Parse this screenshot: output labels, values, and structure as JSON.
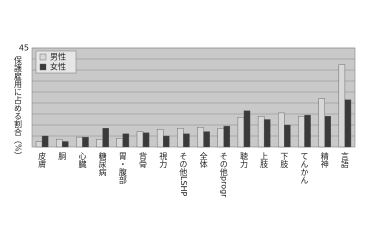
{
  "chart_data": {
    "type": "bar",
    "y_label": "保護雇用に占める割合（%）",
    "categories": [
      "皮膚",
      "胴",
      "心臓",
      "糖尿病",
      "胃・腹部",
      "背骨",
      "視力",
      "その他LSHP",
      "全体",
      "その他progr",
      "聴力",
      "上肢",
      "下肢",
      "てんかん",
      "精神",
      "言語"
    ],
    "series": [
      {
        "name": "男性",
        "color": "#d8d8d8",
        "values": [
          2.5,
          3.5,
          4.5,
          3.5,
          4,
          7,
          8,
          8.5,
          9,
          8.5,
          13.5,
          14,
          15.5,
          14,
          22,
          37.5
        ]
      },
      {
        "name": "女性",
        "color": "#3a3a3a",
        "values": [
          5,
          2.5,
          4.5,
          8.5,
          6,
          6.5,
          5,
          6,
          7,
          9.5,
          16.5,
          12.5,
          10,
          14.5,
          14,
          21.5
        ]
      }
    ],
    "ylim": [
      0,
      45
    ],
    "yticks": [
      {
        "value": 5,
        "label": null
      },
      {
        "value": 10,
        "label": null
      },
      {
        "value": 15,
        "label": null
      },
      {
        "value": 20,
        "label": null
      },
      {
        "value": 25,
        "label": null
      },
      {
        "value": 30,
        "label": null
      },
      {
        "value": 35,
        "label": null
      },
      {
        "value": 40,
        "label": null
      },
      45
    ],
    "grid": true,
    "legend": "top-left"
  }
}
